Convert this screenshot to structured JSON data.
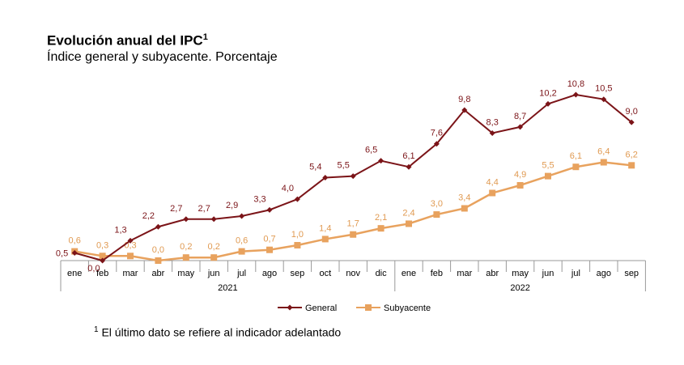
{
  "chart_data": {
    "type": "line",
    "title": "Evolución anual del IPC",
    "title_footnote_mark": "1",
    "subtitle": "Índice general y subyacente. Porcentaje",
    "categories": [
      "ene",
      "feb",
      "mar",
      "abr",
      "may",
      "jun",
      "jul",
      "ago",
      "sep",
      "oct",
      "nov",
      "dic",
      "ene",
      "feb",
      "mar",
      "abr",
      "may",
      "jun",
      "jul",
      "ago",
      "sep"
    ],
    "years": [
      {
        "label": "2021",
        "span": 12
      },
      {
        "label": "2022",
        "span": 9
      }
    ],
    "ylim": [
      0,
      11
    ],
    "series": [
      {
        "name": "General",
        "color": "#7b1418",
        "label_color": "#7b1418",
        "marker": "diamond",
        "values": [
          0.5,
          0.0,
          1.3,
          2.2,
          2.7,
          2.7,
          2.9,
          3.3,
          4.0,
          5.4,
          5.5,
          6.5,
          6.1,
          7.6,
          9.8,
          8.3,
          8.7,
          10.2,
          10.8,
          10.5,
          9.0
        ]
      },
      {
        "name": "Subyacente",
        "color": "#e8a25e",
        "label_color": "#e09a52",
        "marker": "square",
        "values": [
          0.6,
          0.3,
          0.3,
          0.0,
          0.2,
          0.2,
          0.6,
          0.7,
          1.0,
          1.4,
          1.7,
          2.1,
          2.4,
          3.0,
          3.4,
          4.4,
          4.9,
          5.5,
          6.1,
          6.4,
          6.2
        ]
      }
    ],
    "legend": "bottom-center",
    "footnote_mark": "1",
    "footnote": "El último dato se refiere al indicador adelantado"
  }
}
